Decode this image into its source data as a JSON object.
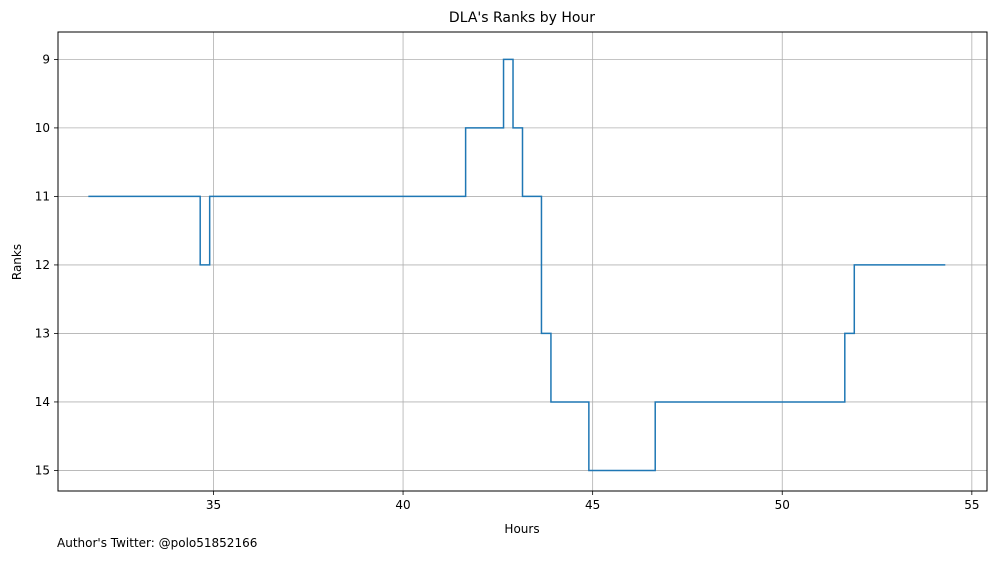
{
  "chart_data": {
    "type": "line",
    "step": true,
    "title": "DLA's Ranks by Hour",
    "xlabel": "Hours",
    "ylabel": "Ranks",
    "xlim": [
      30.9,
      55.4
    ],
    "ylim": [
      15.3,
      8.6
    ],
    "y_inverted": true,
    "grid": true,
    "xticks": [
      35,
      40,
      45,
      50,
      55
    ],
    "yticks": [
      9,
      10,
      11,
      12,
      13,
      14,
      15
    ],
    "line_color": "#1f77b4",
    "series": [
      {
        "x": [
          31.7,
          34.65,
          34.9,
          41.65,
          42.65,
          42.9,
          43.15,
          43.65,
          43.9,
          44.9,
          46.65,
          51.65,
          51.9,
          54.3
        ],
        "y": [
          11,
          12,
          11,
          10,
          9,
          10,
          11,
          13,
          14,
          15,
          14,
          13,
          12,
          12
        ]
      }
    ]
  },
  "footer": {
    "note": "Author's Twitter: @polo51852166"
  }
}
